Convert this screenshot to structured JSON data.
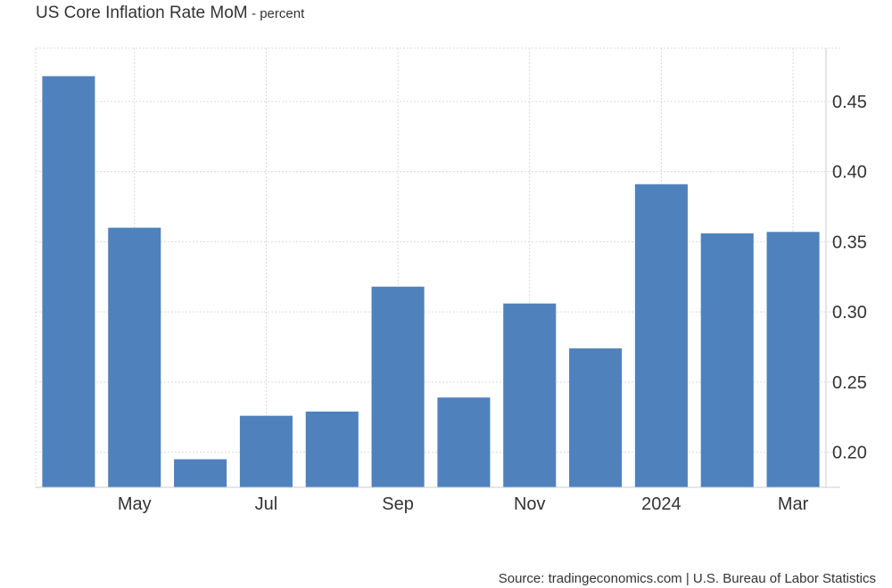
{
  "header": {
    "title": "US Core Inflation Rate MoM",
    "subtitle": "- percent"
  },
  "source": "Source: tradingeconomics.com | U.S. Bureau of Labor Statistics",
  "colors": {
    "bar": "#4f81bd",
    "grid": "#d9d9d9",
    "axis": "#cccccc",
    "text": "#333333"
  },
  "chart_data": {
    "type": "bar",
    "categories": [
      "Apr 2023",
      "May 2023",
      "Jun 2023",
      "Jul 2023",
      "Aug 2023",
      "Sep 2023",
      "Oct 2023",
      "Nov 2023",
      "Dec 2023",
      "Jan 2024",
      "Feb 2024",
      "Mar 2024"
    ],
    "values": [
      0.468,
      0.36,
      0.195,
      0.226,
      0.229,
      0.318,
      0.239,
      0.306,
      0.274,
      0.391,
      0.356,
      0.357
    ],
    "x_tick_labels": [
      {
        "category": "May 2023",
        "label": "May"
      },
      {
        "category": "Jul 2023",
        "label": "Jul"
      },
      {
        "category": "Sep 2023",
        "label": "Sep"
      },
      {
        "category": "Nov 2023",
        "label": "Nov"
      },
      {
        "category": "Jan 2024",
        "label": "2024"
      },
      {
        "category": "Mar 2024",
        "label": "Mar"
      }
    ],
    "y_ticks": [
      0.2,
      0.25,
      0.3,
      0.35,
      0.4,
      0.45
    ],
    "y_tick_labels": [
      "0.20",
      "0.25",
      "0.30",
      "0.35",
      "0.40",
      "0.45"
    ],
    "ylim": [
      0.175,
      0.488
    ],
    "y_axis_side": "right",
    "grid": true,
    "legend": "none"
  }
}
